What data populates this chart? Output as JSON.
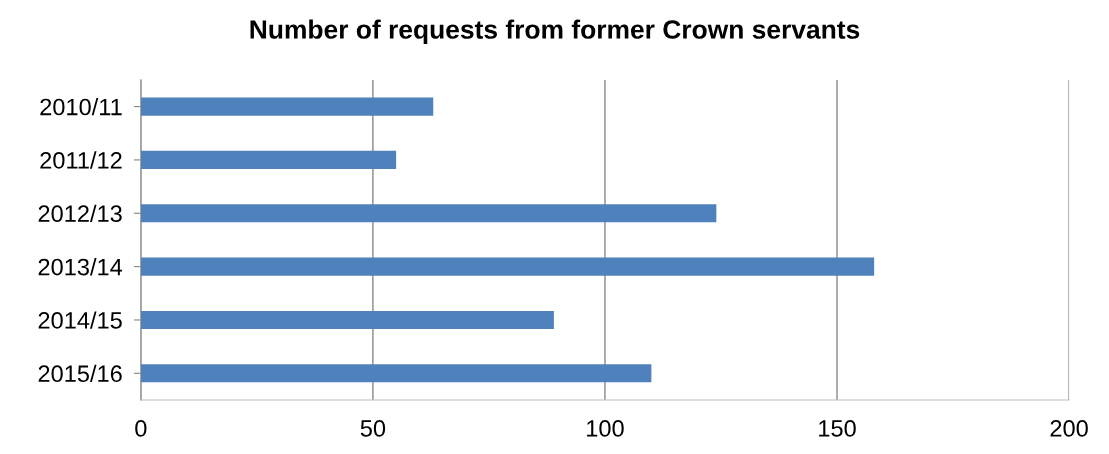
{
  "chart_data": {
    "type": "bar",
    "orientation": "horizontal",
    "title": "Number of requests from former Crown servants",
    "categories": [
      "2010/11",
      "2011/12",
      "2012/13",
      "2013/14",
      "2014/15",
      "2015/16"
    ],
    "values": [
      63,
      55,
      124,
      158,
      89,
      110
    ],
    "color": "#4f81bd",
    "xlim": [
      0,
      200
    ],
    "xticks": [
      0,
      50,
      100,
      150,
      200
    ],
    "grid": "x",
    "legend": false
  }
}
